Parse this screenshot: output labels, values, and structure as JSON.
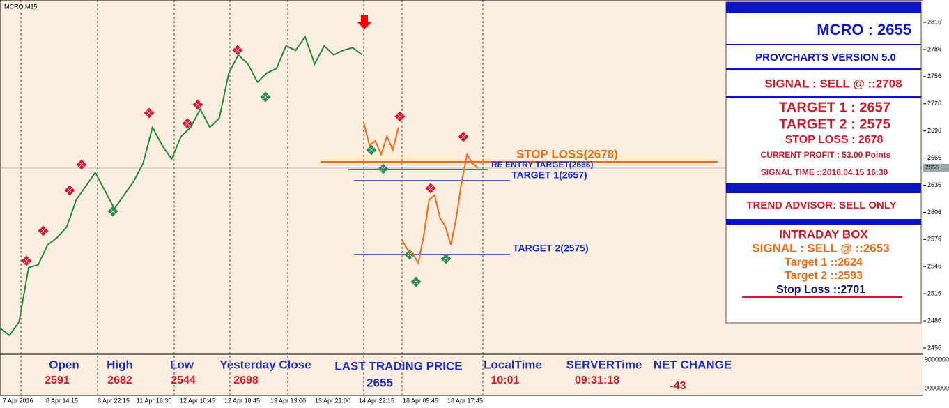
{
  "window_title": "MCRO,M15",
  "price_axis": {
    "ticks": [
      2816,
      2786,
      2756,
      2726,
      2696,
      2666,
      2636,
      2606,
      2576,
      2546,
      2516,
      2486,
      2456
    ],
    "current": 2655
  },
  "volume_axis": {
    "ticks": [
      "9000000",
      "9000000"
    ]
  },
  "time_axis": [
    "7 Apr 2016",
    "8 Apr 14:15",
    "8 Apr 22:15",
    "11 Apr 16:30",
    "12 Apr 10:45",
    "12 Apr 18:45",
    "13 Apr 13:00",
    "13 Apr 21:00",
    "14 Apr 22:15",
    "18 Apr 09:45",
    "18 Apr 17:45"
  ],
  "price": {
    "history": [
      2478,
      2470,
      2485,
      2545,
      2548,
      2570,
      2578,
      2590,
      2620,
      2635,
      2650,
      2630,
      2610,
      2625,
      2640,
      2660,
      2700,
      2680,
      2665,
      2690,
      2700,
      2720,
      2700,
      2710,
      2760,
      2780,
      2770,
      2750,
      2760,
      2765,
      2790,
      2785,
      2800,
      2770,
      2790,
      2780,
      2785,
      2788,
      2780
    ],
    "signal_a": [
      2705,
      2680,
      2685,
      2670,
      2690,
      2675,
      2700
    ],
    "signal_b": [
      2575,
      2565,
      2560,
      2550,
      2580,
      2620,
      2625,
      2600,
      2590,
      2570,
      2600,
      2640,
      2670,
      2660,
      2655
    ]
  },
  "levels": {
    "stop_loss": "STOP LOSS(2678)",
    "re_entry": "RE ENTRY TARGET(2666)",
    "target1": "TARGET 1(2657)",
    "target2": "TARGET 2(2575)"
  },
  "panel": {
    "title": "MCRO : 2655",
    "version": "PROVCHARTS VERSION 5.0",
    "signal": "SIGNAL : SELL @ ::2708",
    "target1": "TARGET 1 : 2657",
    "target2": "TARGET 2 : 2575",
    "stop_loss": "STOP LOSS : 2678",
    "profit": "CURRENT PROFIT : 53.00 Points",
    "signal_time": "SIGNAL TIME ::2016.04.15 16:30",
    "trend": "TREND ADVISOR: SELL ONLY",
    "intraday": {
      "title": "INTRADAY BOX",
      "signal": "SIGNAL : SELL @ ::2653",
      "target1": "Target 1 ::2624",
      "target2": "Target 2 ::2593",
      "stop_loss": "Stop Loss ::2701"
    }
  },
  "footer": {
    "open": {
      "label": "Open",
      "value": "2591"
    },
    "high": {
      "label": "High",
      "value": "2682"
    },
    "low": {
      "label": "Low",
      "value": "2544"
    },
    "yclose": {
      "label": "Yesterday Close",
      "value": "2698"
    },
    "last": {
      "label": "LAST TRADING PRICE",
      "value": "2655"
    },
    "local": {
      "label": "LocalTime",
      "value": "10:01"
    },
    "server": {
      "label": "SERVERTime",
      "value": "09:31:18"
    },
    "net": {
      "label": "NET CHANGE",
      "value": "-43"
    }
  }
}
